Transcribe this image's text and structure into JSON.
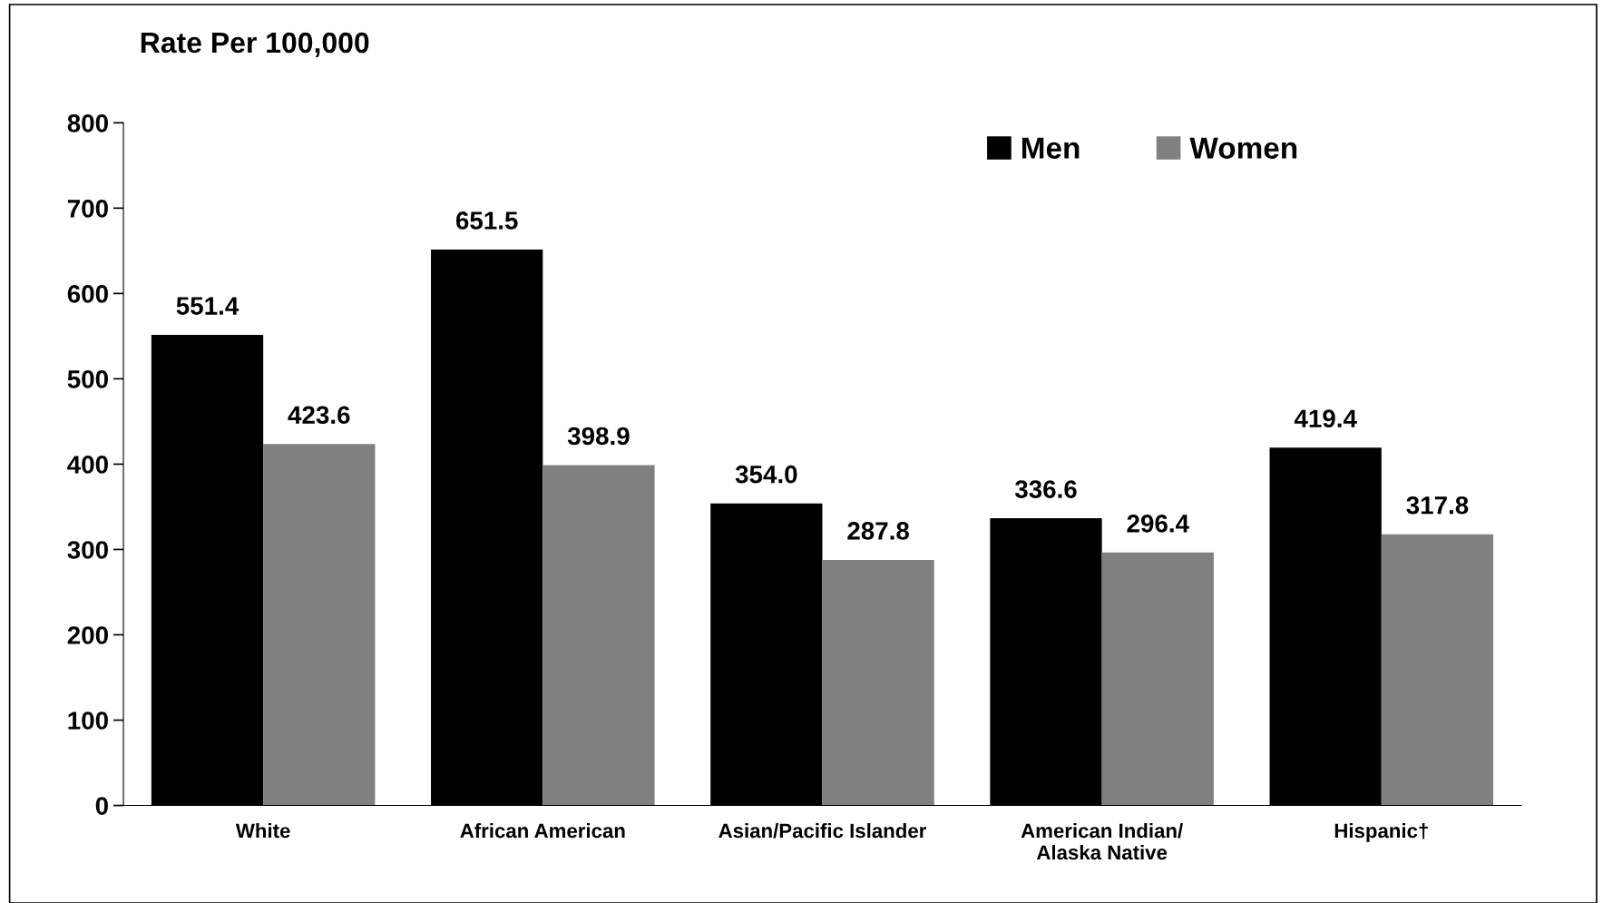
{
  "chart_data": {
    "type": "bar",
    "ylabel": "Rate Per 100,000",
    "categories": [
      "White",
      "African American",
      "Asian/Pacific Islander",
      "American Indian/\nAlaska Native",
      "Hispanic†"
    ],
    "series": [
      {
        "name": "Men",
        "color": "#000000",
        "values": [
          551.4,
          651.5,
          354.0,
          336.6,
          419.4
        ]
      },
      {
        "name": "Women",
        "color": "#808080",
        "values": [
          423.6,
          398.9,
          287.8,
          296.4,
          317.8
        ]
      }
    ],
    "value_labels": [
      [
        "551.4",
        "651.5",
        "354.0",
        "336.6",
        "419.4"
      ],
      [
        "423.6",
        "398.9",
        "287.8",
        "296.4",
        "317.8"
      ]
    ],
    "ylim": [
      0,
      800
    ],
    "yticks": [
      0,
      100,
      200,
      300,
      400,
      500,
      600,
      700,
      800
    ],
    "grid": false,
    "legend": "top right"
  }
}
